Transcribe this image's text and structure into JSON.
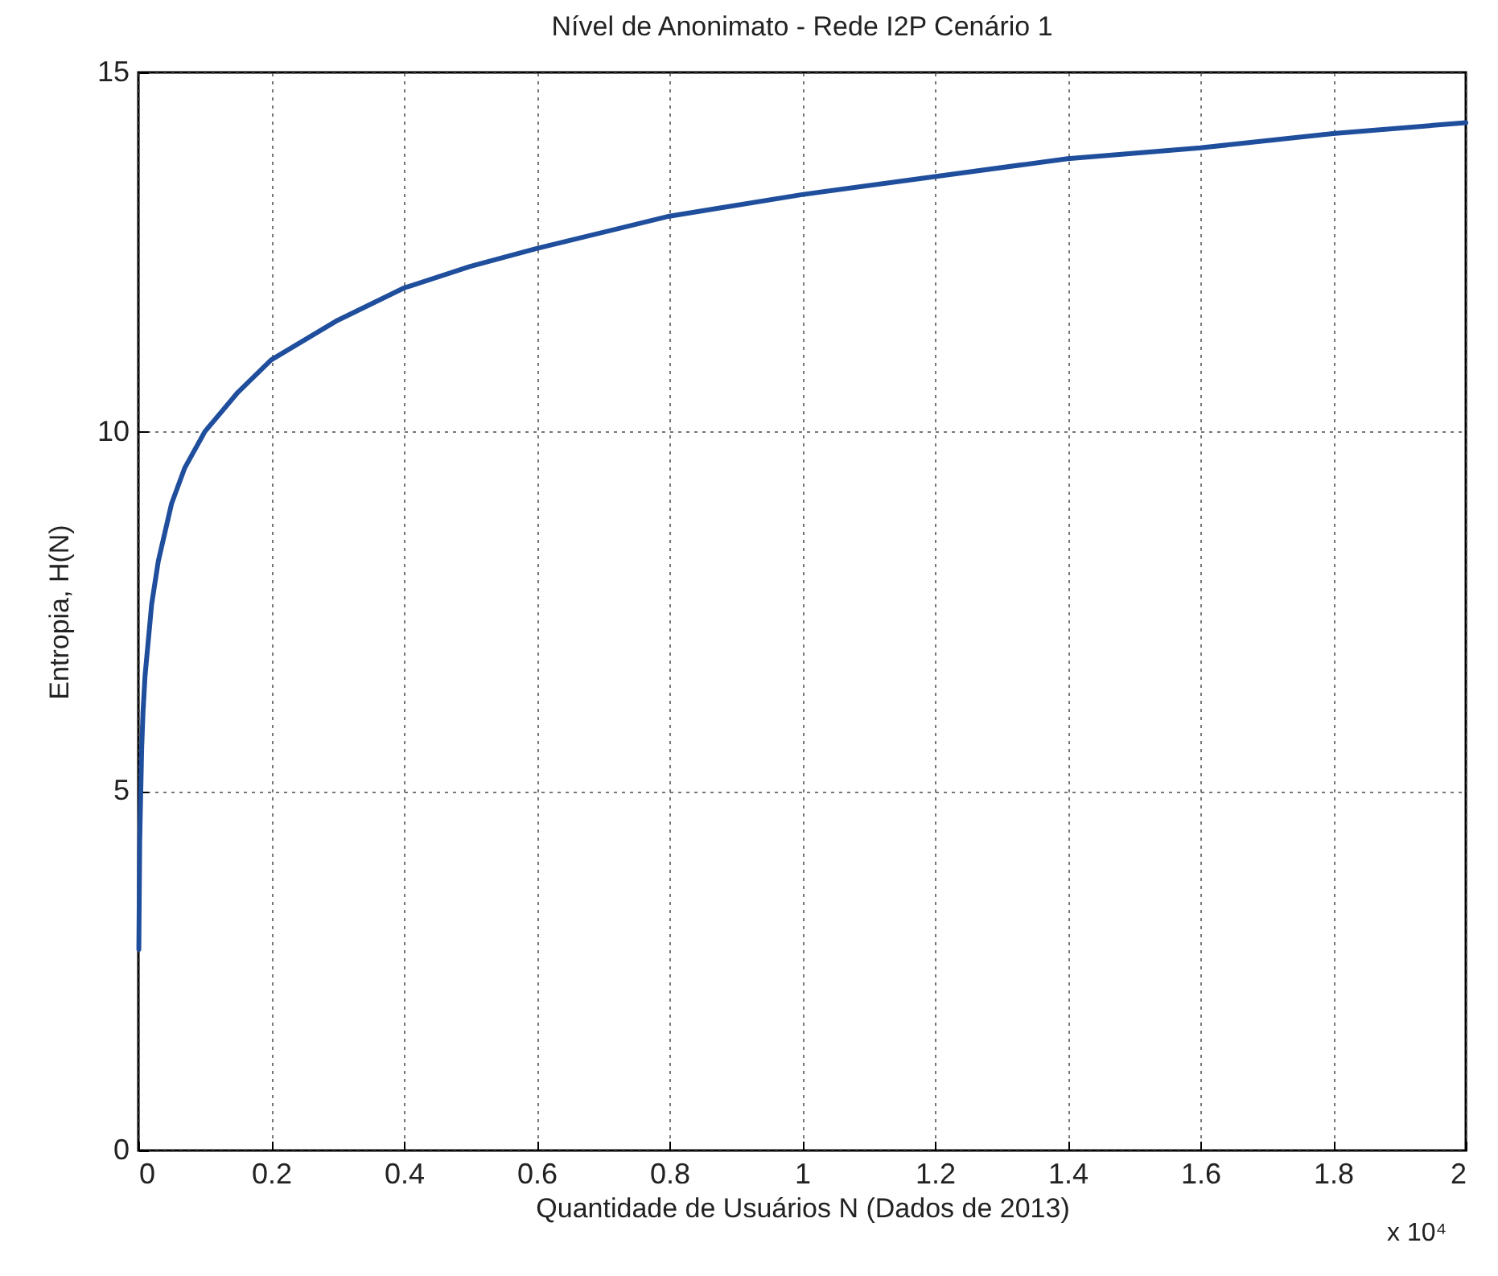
{
  "chart_data": {
    "type": "line",
    "title": "Nível de Anonimato - Rede I2P Cenário 1",
    "xlabel": "Quantidade de Usuários N (Dados de 2013)",
    "ylabel": "Entropia, H(N)",
    "annotations": [
      "x 10⁴"
    ],
    "x": [
      0.0007,
      0.002,
      0.005,
      0.007,
      0.01,
      0.02,
      0.03,
      0.05,
      0.07,
      0.1,
      0.15,
      0.2,
      0.3,
      0.4,
      0.5,
      0.6,
      0.8,
      1,
      1.2,
      1.4,
      1.6,
      1.8,
      2
    ],
    "series": [
      {
        "color": "#1f4e9c",
        "values": [
          2.8,
          4.3,
          5.6,
          6.1,
          6.6,
          7.6,
          8.2,
          9.0,
          9.5,
          10.0,
          10.55,
          11.0,
          11.55,
          12.0,
          12.3,
          12.55,
          13.0,
          13.3,
          13.55,
          13.8,
          13.95,
          14.15,
          14.3
        ]
      }
    ],
    "xlim": [
      0,
      2
    ],
    "xticks": [
      0,
      0.2,
      0.4,
      0.6,
      0.8,
      1,
      1.2,
      1.4,
      1.6,
      1.8,
      2
    ],
    "ylim": [
      0,
      15
    ],
    "yticks": [
      0,
      5,
      10,
      15
    ],
    "grid": true,
    "line_style": "solid",
    "marker": "none"
  }
}
